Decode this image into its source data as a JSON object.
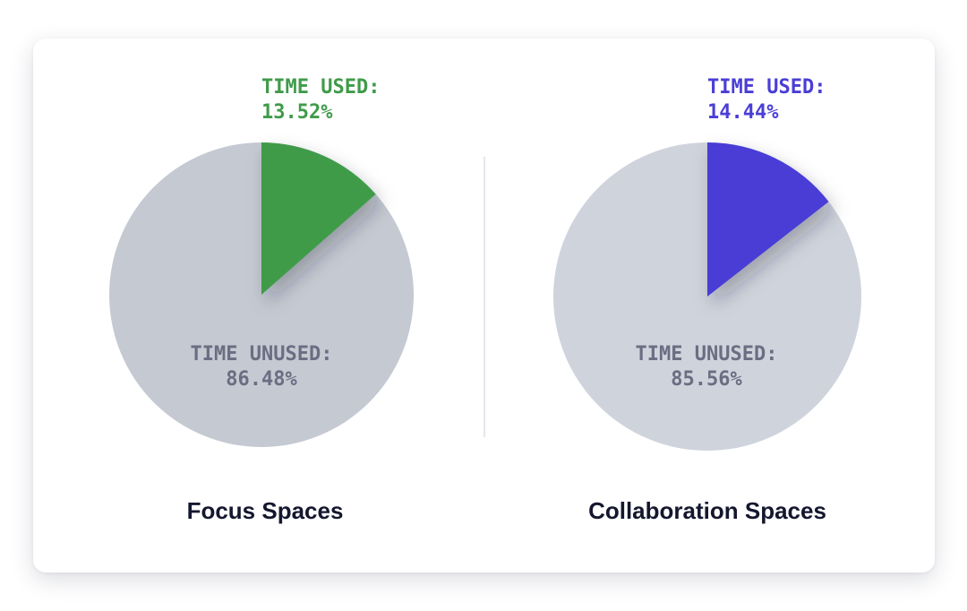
{
  "chart_data": [
    {
      "type": "pie",
      "title": "Focus Spaces",
      "slices": [
        {
          "label": "TIME USED:",
          "value": 13.52,
          "display": "13.52%",
          "color": "#3f9b4a"
        },
        {
          "label": "TIME UNUSED:",
          "value": 86.48,
          "display": "86.48%",
          "color": "#c4c9d2"
        }
      ]
    },
    {
      "type": "pie",
      "title": "Collaboration Spaces",
      "slices": [
        {
          "label": "TIME USED:",
          "value": 14.44,
          "display": "14.44%",
          "color": "#4a3ed6"
        },
        {
          "label": "TIME UNUSED:",
          "value": 85.56,
          "display": "85.56%",
          "color": "#cfd3dc"
        }
      ]
    }
  ]
}
